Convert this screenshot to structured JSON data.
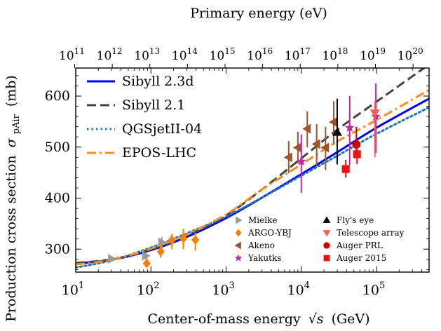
{
  "chart_data": {
    "type": "line",
    "xlabel": "Center-of-mass energy √s (GeV)",
    "xlabel_pre": "Center-of-mass energy",
    "xlabel_sym": "√s",
    "xlabel_post": "(GeV)",
    "x2label": "Primary energy (eV)",
    "ylabel": "Production cross section σpAir (mb)",
    "ylabel_pre": "Production cross section",
    "ylabel_sym": "σ",
    "ylabel_sub": "pAir",
    "ylabel_post": "(mb)",
    "x_scale": "log",
    "xlim": [
      10,
      500000
    ],
    "ylim": [
      255,
      655
    ],
    "x2_scale": "log",
    "x_ticks": [
      {
        "value": 10,
        "base": "10",
        "exp": "1"
      },
      {
        "value": 100,
        "base": "10",
        "exp": "2"
      },
      {
        "value": 1000,
        "base": "10",
        "exp": "3"
      },
      {
        "value": 10000,
        "base": "10",
        "exp": "4"
      },
      {
        "value": 100000,
        "base": "10",
        "exp": "5"
      }
    ],
    "y_ticks": [
      {
        "value": 300,
        "label": "300"
      },
      {
        "value": 400,
        "label": "400"
      },
      {
        "value": 500,
        "label": "500"
      },
      {
        "value": 600,
        "label": "600"
      }
    ],
    "x2_ticks": [
      {
        "value": 11,
        "base": "10",
        "exp": "11"
      },
      {
        "value": 12,
        "base": "10",
        "exp": "12"
      },
      {
        "value": 13,
        "base": "10",
        "exp": "13"
      },
      {
        "value": 14,
        "base": "10",
        "exp": "14"
      },
      {
        "value": 15,
        "base": "10",
        "exp": "15"
      },
      {
        "value": 16,
        "base": "10",
        "exp": "16"
      },
      {
        "value": 17,
        "base": "10",
        "exp": "17"
      },
      {
        "value": 18,
        "base": "10",
        "exp": "18"
      },
      {
        "value": 19,
        "base": "10",
        "exp": "19"
      },
      {
        "value": 20,
        "base": "10",
        "exp": "20"
      }
    ],
    "series": [
      {
        "name": "Sibyll 2.3d",
        "color": "#0000ee",
        "dash": "solid",
        "x": [
          10,
          30,
          100,
          300,
          1000,
          3000,
          10000,
          30000,
          100000,
          500000
        ],
        "y": [
          272,
          279,
          298,
          324,
          361,
          401,
          447,
          490,
          538,
          595
        ]
      },
      {
        "name": "Sibyll 2.1",
        "color": "#444444",
        "dash": "dashed",
        "x": [
          10,
          30,
          100,
          300,
          1000,
          3000,
          10000,
          30000,
          100000,
          500000
        ],
        "y": [
          273,
          280,
          299,
          326,
          366,
          417,
          478,
          534,
          589,
          662
        ]
      },
      {
        "name": "QGSjetII-04",
        "color": "#1f77b4",
        "dash": "dotted",
        "x": [
          10,
          30,
          100,
          300,
          1000,
          3000,
          10000,
          30000,
          100000,
          500000
        ],
        "y": [
          264,
          278,
          303,
          331,
          364,
          401,
          444,
          483,
          526,
          578
        ]
      },
      {
        "name": "EPOS-LHC",
        "color": "#ff8c1a",
        "dash": "dashdot",
        "x": [
          10,
          30,
          100,
          300,
          1000,
          3000,
          10000,
          30000,
          100000,
          500000
        ],
        "y": [
          270,
          279,
          301,
          329,
          368,
          417,
          466,
          511,
          553,
          612
        ]
      }
    ],
    "measurements": [
      {
        "name": "Mielke",
        "color": "#999999",
        "marker": "triangle-right",
        "legend_col": 0,
        "points": [
          {
            "x": 30,
            "y": 281,
            "ylo": 278,
            "yhi": 284
          },
          {
            "x": 85,
            "y": 287,
            "ylo": 281,
            "yhi": 293
          },
          {
            "x": 140,
            "y": 313,
            "ylo": 300,
            "yhi": 324
          }
        ]
      },
      {
        "name": "ARGO-YBJ",
        "color": "#ff8000",
        "marker": "diamond",
        "legend_col": 0,
        "points": [
          {
            "x": 88,
            "y": 272,
            "ylo": 264,
            "yhi": 283
          },
          {
            "x": 135,
            "y": 295,
            "ylo": 283,
            "yhi": 313
          },
          {
            "x": 190,
            "y": 318,
            "ylo": 300,
            "yhi": 330
          },
          {
            "x": 270,
            "y": 321,
            "ylo": 300,
            "yhi": 340
          },
          {
            "x": 390,
            "y": 318,
            "ylo": 297,
            "yhi": 332
          }
        ]
      },
      {
        "name": "Akeno",
        "color": "#a0522d",
        "marker": "triangle-left",
        "legend_col": 0,
        "points": [
          {
            "x": 6800,
            "y": 480,
            "ylo": 449,
            "yhi": 512
          },
          {
            "x": 9000,
            "y": 499,
            "ylo": 468,
            "yhi": 530
          },
          {
            "x": 12000,
            "y": 536,
            "ylo": 500,
            "yhi": 570
          },
          {
            "x": 16000,
            "y": 506,
            "ylo": 465,
            "yhi": 545
          },
          {
            "x": 21000,
            "y": 499,
            "ylo": 455,
            "yhi": 540
          },
          {
            "x": 27000,
            "y": 549,
            "ylo": 505,
            "yhi": 590
          }
        ]
      },
      {
        "name": "Yakutks",
        "color": "#cc22aa",
        "marker": "star",
        "legend_col": 0,
        "points": [
          {
            "x": 10000,
            "y": 472,
            "ylo": 410,
            "yhi": 525
          },
          {
            "x": 44000,
            "y": 538,
            "ylo": 465,
            "yhi": 600
          },
          {
            "x": 98000,
            "y": 560,
            "ylo": 488,
            "yhi": 625
          }
        ]
      },
      {
        "name": "Fly's eye",
        "color": "#000000",
        "marker": "triangle-up",
        "legend_col": 1,
        "points": [
          {
            "x": 30000,
            "y": 529,
            "ylo": 466,
            "yhi": 595
          }
        ]
      },
      {
        "name": "Telescope array",
        "color": "#ff6050",
        "marker": "triangle-down",
        "legend_col": 1,
        "points": [
          {
            "x": 95000,
            "y": 567,
            "ylo": 480,
            "yhi": 590
          }
        ]
      },
      {
        "name": "Auger PRL",
        "color": "#cc0000",
        "marker": "circle",
        "legend_col": 1,
        "points": [
          {
            "x": 54000,
            "y": 505,
            "ylo": 482,
            "yhi": 540
          }
        ]
      },
      {
        "name": "Auger 2015",
        "color": "#ee1111",
        "marker": "square",
        "legend_col": 1,
        "points": [
          {
            "x": 39000,
            "y": 457,
            "ylo": 440,
            "yhi": 475
          },
          {
            "x": 55000,
            "y": 486,
            "ylo": 467,
            "yhi": 505
          }
        ]
      }
    ],
    "legend_placement": "top-left",
    "grid": false
  }
}
